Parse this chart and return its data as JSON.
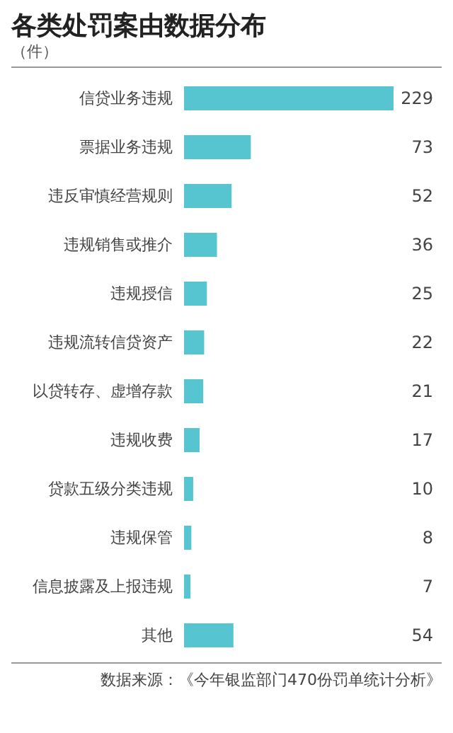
{
  "chart_data": {
    "type": "bar",
    "orientation": "horizontal",
    "title": "各类处罚案由数据分布",
    "subtitle": "（件）",
    "categories": [
      "信贷业务违规",
      "票据业务违规",
      "违反审慎经营规则",
      "违规销售或推介",
      "违规授信",
      "违规流转信贷资产",
      "以贷转存、虚增存款",
      "违规收费",
      "贷款五级分类违规",
      "违规保管",
      "信息披露及上报违规",
      "其他"
    ],
    "values": [
      229,
      73,
      52,
      36,
      25,
      22,
      21,
      17,
      10,
      8,
      7,
      54
    ],
    "color": "#56c5d0",
    "data_labels": true,
    "annotations": [
      "数据来源：《今年银监部门470份罚单统计分析》"
    ]
  }
}
